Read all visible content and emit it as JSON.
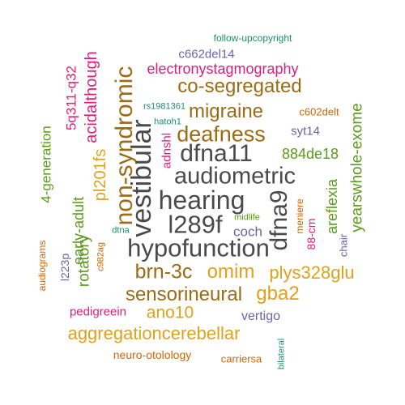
{
  "words": {
    "follow_upcopyright": "follow-upcopyright",
    "c662del14": "c662del14",
    "electronystagmography": "electronystagmography",
    "co_segregated": "co-segregated",
    "q32": "5q311-q32",
    "acidalthough": "acidalthough",
    "non_syndromic": "non-syndromic",
    "migraine": "migraine",
    "rs1981361": "rs1981361",
    "c602delt": "c602delt",
    "hatoh1": "hatoh1",
    "deafness": "deafness",
    "syt14": "syt14",
    "generation4": "4-generation",
    "pl201fs": "pl201fs",
    "vestibular": "vestibular",
    "adnshl": "adnshl",
    "dfna11": "dfna11",
    "de18": "884de18",
    "yearswhole_exome": "yearswhole-exome",
    "early_adult": "early-adult",
    "audiometric": "audiometric",
    "areflexia": "areflexia",
    "hearing": "hearing",
    "dfna9": "dfna9",
    "midlife": "midlife",
    "meniere": "meniere",
    "cm88": "88-cm",
    "l289f": "l289f",
    "coch": "coch",
    "dtna": "dtna",
    "chair": "chair",
    "rotatory": "rotatory",
    "audiograms": "audiograms",
    "hypofunction": "hypofunction",
    "l223p": "l223p",
    "c982ag": "c982ag",
    "brn3c": "brn-3c",
    "omim": "omim",
    "plys328glu": "plys328glu",
    "sensorineural": "sensorineural",
    "gba2": "gba2",
    "ano10": "ano10",
    "pedigreein": "pedigreein",
    "vertigo": "vertigo",
    "aggregationcerebellar": "aggregationcerebellar",
    "neuro_otolology": "neuro-otolology",
    "carriersa": "carriersa",
    "bilateral": "bilateral"
  }
}
